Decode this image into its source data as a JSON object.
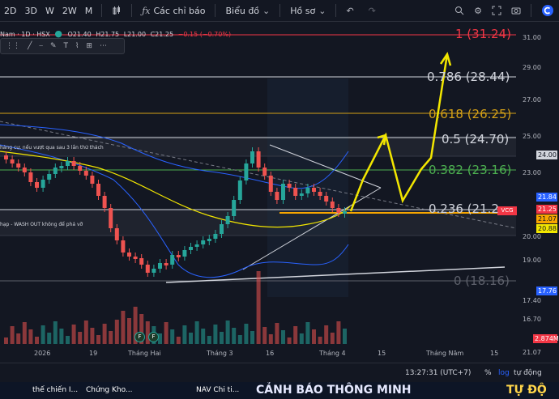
{
  "toolbar": {
    "intervals": [
      "2D",
      "3D",
      "W",
      "2W",
      "M"
    ],
    "indicators_label": "Các chỉ báo",
    "charts_label": "Biểu đồ",
    "profile_label": "Hồ sơ"
  },
  "legend": {
    "symbol": "Nam · 1D · HSX",
    "open": "O21.40",
    "high": "H21.75",
    "low": "L21.00",
    "close": "C21.25",
    "change": "−0.15 (−0.70%)"
  },
  "price_axis": [
    "31.00",
    "29.00",
    "27.00",
    "25.00",
    "23.00",
    "20.00",
    "19.00",
    "17.40",
    "16.70",
    "21.07"
  ],
  "price_tags": [
    {
      "value": "24.00",
      "bg": "#d1d4dc",
      "fg": "#131722"
    },
    {
      "value": "21.84",
      "bg": "#2962ff",
      "fg": "#ffffff"
    },
    {
      "value": "21.25",
      "bg": "#f23645",
      "fg": "#ffffff"
    },
    {
      "value": "21.07",
      "bg": "#f7a600",
      "fg": "#131722"
    },
    {
      "value": "20.88",
      "bg": "#f2e600",
      "fg": "#131722"
    },
    {
      "value": "17.76",
      "bg": "#2962ff",
      "fg": "#ffffff"
    },
    {
      "value": "2.874M",
      "bg": "#f23645",
      "fg": "#ffffff"
    }
  ],
  "symbol_tag": "VCG",
  "fib_levels": [
    {
      "label": "1 (31.24)",
      "color": "#f23645"
    },
    {
      "label": "0.786 (28.44)",
      "color": "#d1d4dc"
    },
    {
      "label": "0.618 (26.25)",
      "color": "#d4a017"
    },
    {
      "label": "0.5 (24.70)",
      "color": "#d1d4dc"
    },
    {
      "label": "0.382 (23.16)",
      "color": "#4caf50"
    },
    {
      "label": "0.236 (21.2",
      "color": "#d1d4dc"
    },
    {
      "label": "0 (18.16)",
      "color": "#5d606b"
    }
  ],
  "annotations": [
    "háng cự, nếu vượt qua sau 3 lần thử thách",
    "hạp - WASH OUT không để phá vỡ"
  ],
  "time_axis": [
    "2026",
    "19",
    "Tháng Hai",
    "Tháng 3",
    "16",
    "Tháng 4",
    "15",
    "Tháng Năm",
    "15"
  ],
  "event_markers": [
    "F",
    "F"
  ],
  "status": {
    "time": "13:27:31 (UTC+7)",
    "percent": "%",
    "log": "log",
    "auto": "tự động"
  },
  "ticker": [
    "thế chiến I...",
    "Chứng Kho...",
    "NAV Chi ti...",
    "CẢNH BÁO THÔNG MINH",
    "TỰ ĐỘ"
  ],
  "colors": {
    "background": "#131722",
    "up": "#26a69a",
    "down": "#ef5350",
    "accent": "#2962ff",
    "ma_yellow": "#f2e600",
    "ticker_text": "#ffffff"
  }
}
